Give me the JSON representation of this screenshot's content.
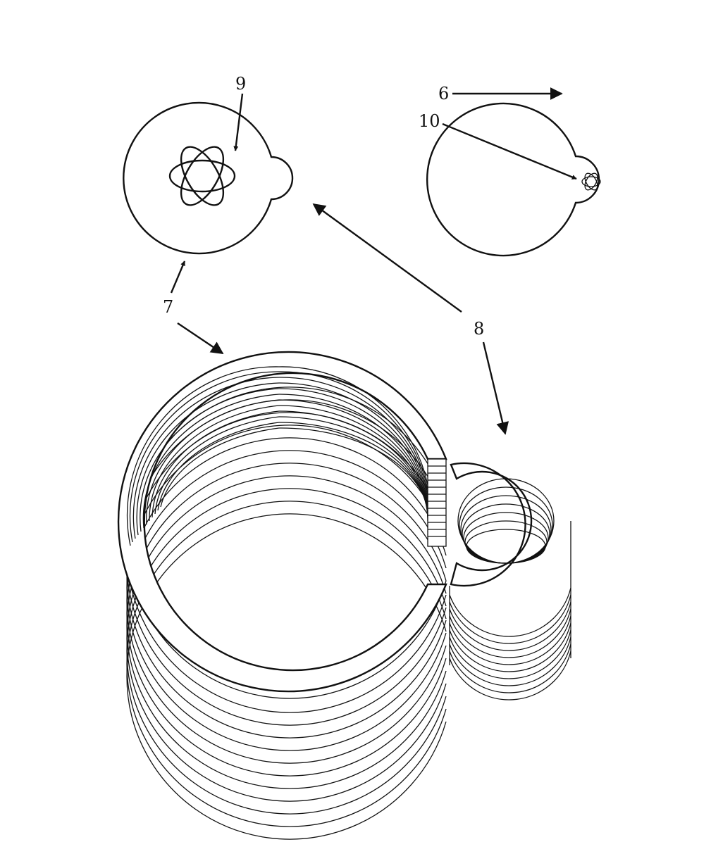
{
  "figure": {
    "labels": {
      "direction": "6",
      "large_coil": "7",
      "small_coil": "8",
      "large_particle": "9",
      "small_particle": "10"
    },
    "colors": {
      "ink": "#111111",
      "paper": "#ffffff"
    },
    "arrowhead_icon": "filled-triangle"
  }
}
